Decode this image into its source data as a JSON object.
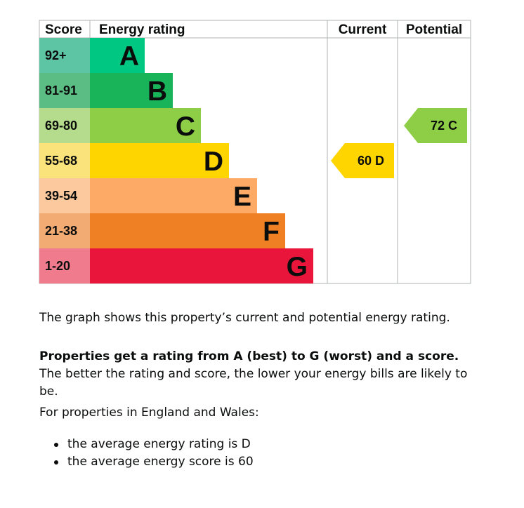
{
  "chart_data": {
    "type": "table",
    "headers": {
      "score": "Score",
      "rating": "Energy rating",
      "current": "Current",
      "potential": "Potential"
    },
    "bands": [
      {
        "letter": "A",
        "range": "92+",
        "color": "#00c781",
        "score_color": "#5ec5a4"
      },
      {
        "letter": "B",
        "range": "81-91",
        "color": "#19b459",
        "score_color": "#5cbd84"
      },
      {
        "letter": "C",
        "range": "69-80",
        "color": "#8dce46",
        "score_color": "#b5dc8c"
      },
      {
        "letter": "D",
        "range": "55-68",
        "color": "#ffd500",
        "score_color": "#fae37a"
      },
      {
        "letter": "E",
        "range": "39-54",
        "color": "#fcaa65",
        "score_color": "#fbc99d"
      },
      {
        "letter": "F",
        "range": "21-38",
        "color": "#ef8023",
        "score_color": "#f1ab73"
      },
      {
        "letter": "G",
        "range": "1-20",
        "color": "#e9153b",
        "score_color": "#ef7b8d"
      }
    ],
    "current": {
      "score": 60,
      "letter": "D",
      "label": "60  D",
      "color": "#ffd500"
    },
    "potential": {
      "score": 72,
      "letter": "C",
      "label": "72  C",
      "color": "#8dce46"
    }
  },
  "text": {
    "intro": "The graph shows this property’s current and potential energy rating.",
    "rating_bold": "Properties get a rating from A (best) to G (worst) and a score.",
    "rating_rest": " The better the rating and score, the lower your energy bills are likely to be.",
    "region": "For properties in England and Wales:",
    "averages": [
      "the average energy rating is D",
      "the average energy score is 60"
    ]
  }
}
